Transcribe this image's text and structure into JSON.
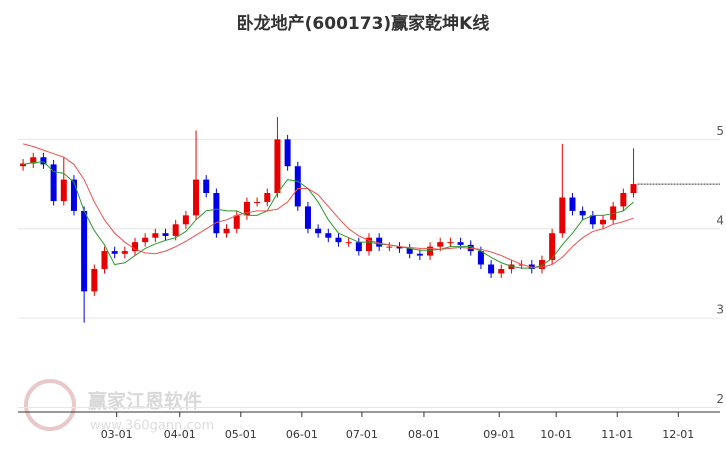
{
  "chart_data": {
    "type": "candlestick",
    "title": "卧龙地产(600173)赢家乾坤K线",
    "watermark": "赢家江恩软件",
    "watermark_url": "www.360gann.com",
    "x": [
      0,
      1,
      2,
      3,
      4,
      5,
      6,
      7,
      8,
      9,
      10,
      11,
      12,
      13,
      14,
      15,
      16,
      17,
      18,
      19,
      20,
      21,
      22,
      23,
      24,
      25,
      26,
      27,
      28,
      29,
      30,
      31,
      32,
      33,
      34,
      35,
      36,
      37,
      38,
      39,
      40,
      41,
      42,
      43,
      44,
      45,
      46,
      47,
      48,
      49,
      50,
      51,
      52,
      53,
      54,
      55,
      56,
      57,
      58,
      59,
      60
    ],
    "open": [
      4.7,
      4.73,
      4.8,
      4.72,
      4.31,
      4.55,
      4.2,
      3.3,
      3.55,
      3.75,
      3.72,
      3.75,
      3.85,
      3.9,
      3.95,
      3.92,
      4.05,
      4.15,
      4.55,
      4.4,
      3.95,
      4.0,
      4.15,
      4.3,
      4.3,
      4.4,
      5.0,
      4.7,
      4.25,
      4.0,
      3.95,
      3.9,
      3.85,
      3.85,
      3.75,
      3.9,
      3.8,
      3.8,
      3.78,
      3.72,
      3.7,
      3.8,
      3.85,
      3.85,
      3.82,
      3.75,
      3.6,
      3.5,
      3.55,
      3.6,
      3.6,
      3.55,
      3.65,
      3.95,
      4.35,
      4.2,
      4.15,
      4.05,
      4.1,
      4.25,
      4.4
    ],
    "high": [
      4.78,
      4.85,
      4.85,
      4.77,
      4.8,
      4.6,
      4.25,
      3.6,
      3.8,
      3.8,
      3.8,
      3.9,
      3.95,
      4.0,
      4.0,
      4.1,
      4.2,
      5.1,
      4.6,
      4.45,
      4.05,
      4.2,
      4.35,
      4.35,
      4.45,
      5.25,
      5.05,
      4.75,
      4.3,
      4.05,
      4.0,
      3.95,
      3.9,
      3.9,
      3.95,
      3.95,
      3.85,
      3.85,
      3.83,
      3.77,
      3.85,
      3.9,
      3.9,
      3.9,
      3.87,
      3.8,
      3.65,
      3.6,
      3.65,
      3.65,
      3.65,
      3.7,
      4.0,
      4.95,
      4.4,
      4.25,
      4.2,
      4.15,
      4.3,
      4.45,
      4.9
    ],
    "low": [
      4.65,
      4.68,
      4.67,
      4.26,
      4.26,
      4.15,
      2.95,
      3.25,
      3.5,
      3.67,
      3.67,
      3.7,
      3.8,
      3.85,
      3.87,
      3.87,
      4.0,
      4.1,
      4.35,
      3.9,
      3.9,
      3.95,
      4.1,
      4.25,
      4.25,
      4.35,
      4.65,
      4.2,
      3.95,
      3.9,
      3.85,
      3.8,
      3.8,
      3.7,
      3.7,
      3.75,
      3.75,
      3.73,
      3.67,
      3.65,
      3.65,
      3.75,
      3.8,
      3.77,
      3.7,
      3.55,
      3.45,
      3.45,
      3.5,
      3.55,
      3.5,
      3.5,
      3.6,
      3.9,
      4.15,
      4.1,
      4.0,
      4.0,
      4.05,
      4.2,
      4.35
    ],
    "close": [
      4.73,
      4.8,
      4.72,
      4.31,
      4.55,
      4.2,
      3.3,
      3.55,
      3.75,
      3.72,
      3.75,
      3.85,
      3.9,
      3.95,
      3.92,
      4.05,
      4.15,
      4.55,
      4.4,
      3.95,
      4.0,
      4.15,
      4.3,
      4.3,
      4.4,
      5.0,
      4.7,
      4.25,
      4.0,
      3.95,
      3.9,
      3.85,
      3.85,
      3.75,
      3.9,
      3.8,
      3.8,
      3.78,
      3.72,
      3.7,
      3.8,
      3.85,
      3.85,
      3.82,
      3.75,
      3.6,
      3.5,
      3.55,
      3.6,
      3.6,
      3.55,
      3.65,
      3.95,
      4.35,
      4.2,
      4.15,
      4.05,
      4.1,
      4.25,
      4.4,
      4.5
    ],
    "up_color": "#e60000",
    "down_color": "#0000e6",
    "series": [
      {
        "color": "#2e9a2e",
        "values": [
          4.72,
          4.74,
          4.75,
          4.64,
          4.62,
          4.52,
          4.2,
          3.98,
          3.82,
          3.6,
          3.62,
          3.7,
          3.78,
          3.83,
          3.87,
          3.9,
          3.97,
          4.1,
          4.2,
          4.22,
          4.2,
          4.2,
          4.15,
          4.15,
          4.2,
          4.4,
          4.55,
          4.53,
          4.45,
          4.3,
          4.1,
          3.95,
          3.9,
          3.85,
          3.85,
          3.83,
          3.82,
          3.8,
          3.78,
          3.76,
          3.76,
          3.77,
          3.8,
          3.8,
          3.8,
          3.75,
          3.68,
          3.62,
          3.58,
          3.56,
          3.56,
          3.59,
          3.67,
          3.82,
          3.95,
          4.1,
          4.15,
          4.15,
          4.17,
          4.2,
          4.3
        ]
      },
      {
        "color": "#f05050",
        "values": [
          4.95,
          4.92,
          4.88,
          4.84,
          4.8,
          4.72,
          4.55,
          4.3,
          4.1,
          3.95,
          3.85,
          3.77,
          3.73,
          3.72,
          3.75,
          3.8,
          3.86,
          3.93,
          4.0,
          4.07,
          4.1,
          4.15,
          4.18,
          4.2,
          4.2,
          4.22,
          4.3,
          4.45,
          4.45,
          4.38,
          4.25,
          4.12,
          4.0,
          3.92,
          3.87,
          3.84,
          3.82,
          3.8,
          3.79,
          3.78,
          3.78,
          3.77,
          3.78,
          3.79,
          3.78,
          3.77,
          3.74,
          3.7,
          3.65,
          3.6,
          3.57,
          3.57,
          3.6,
          3.68,
          3.8,
          3.9,
          3.97,
          4.0,
          4.05,
          4.08,
          4.12
        ]
      }
    ],
    "xlim": [
      -0.5,
      68.5
    ],
    "xticks": [
      {
        "value": 9.2,
        "label": "03-01"
      },
      {
        "value": 15.4,
        "label": "04-01"
      },
      {
        "value": 21.4,
        "label": "05-01"
      },
      {
        "value": 27.4,
        "label": "06-01"
      },
      {
        "value": 33.3,
        "label": "07-01"
      },
      {
        "value": 39.4,
        "label": "08-01"
      },
      {
        "value": 46.8,
        "label": "09-01"
      },
      {
        "value": 52.4,
        "label": "10-01"
      },
      {
        "value": 58.4,
        "label": "11-01"
      },
      {
        "value": 64.4,
        "label": "12-01"
      }
    ],
    "ylim": [
      1.95,
      6.0
    ],
    "yticks": [
      2,
      3,
      4,
      5
    ],
    "grid": true
  }
}
